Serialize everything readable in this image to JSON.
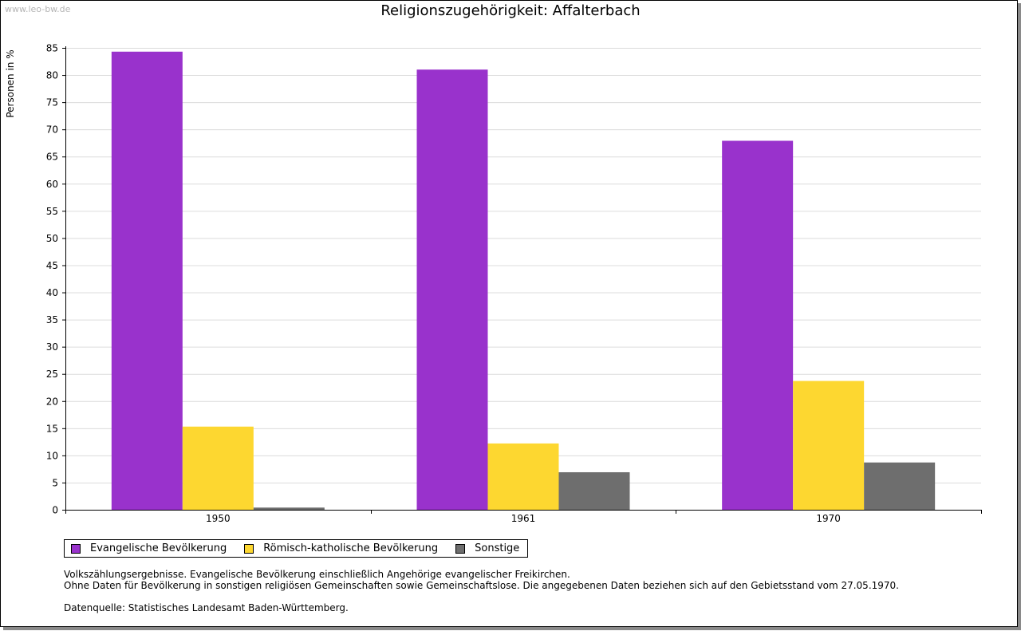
{
  "watermark": "www.leo-bw.de",
  "chart_data": {
    "type": "bar",
    "title": "Religionszugehörigkeit: Affalterbach",
    "xlabel": "",
    "ylabel": "Personen in %",
    "categories": [
      "1950",
      "1961",
      "1970"
    ],
    "series": [
      {
        "name": "Evangelische Bevölkerung",
        "color": "#9932CC",
        "values": [
          84.3,
          81.0,
          67.9
        ]
      },
      {
        "name": "Römisch-katholische Bevölkerung",
        "color": "#FDD730",
        "values": [
          15.3,
          12.2,
          23.7
        ]
      },
      {
        "name": "Sonstige",
        "color": "#6E6E6E",
        "values": [
          0.4,
          6.9,
          8.7
        ]
      }
    ],
    "ylim": [
      0,
      85
    ],
    "yticks": [
      0,
      5,
      10,
      15,
      20,
      25,
      30,
      35,
      40,
      45,
      50,
      55,
      60,
      65,
      70,
      75,
      80,
      85
    ],
    "grid": true,
    "legend_position": "bottom"
  },
  "notes": {
    "line1": "Volkszählungsergebnisse. Evangelische Bevölkerung einschließlich Angehörige evangelischer Freikirchen.",
    "line2": "Ohne Daten für Bevölkerung in sonstigen religiösen Gemeinschaften sowie Gemeinschaftslose. Die angegebenen Daten beziehen sich auf den Gebietsstand vom 27.05.1970.",
    "source": "Datenquelle: Statistisches Landesamt Baden-Württemberg."
  }
}
